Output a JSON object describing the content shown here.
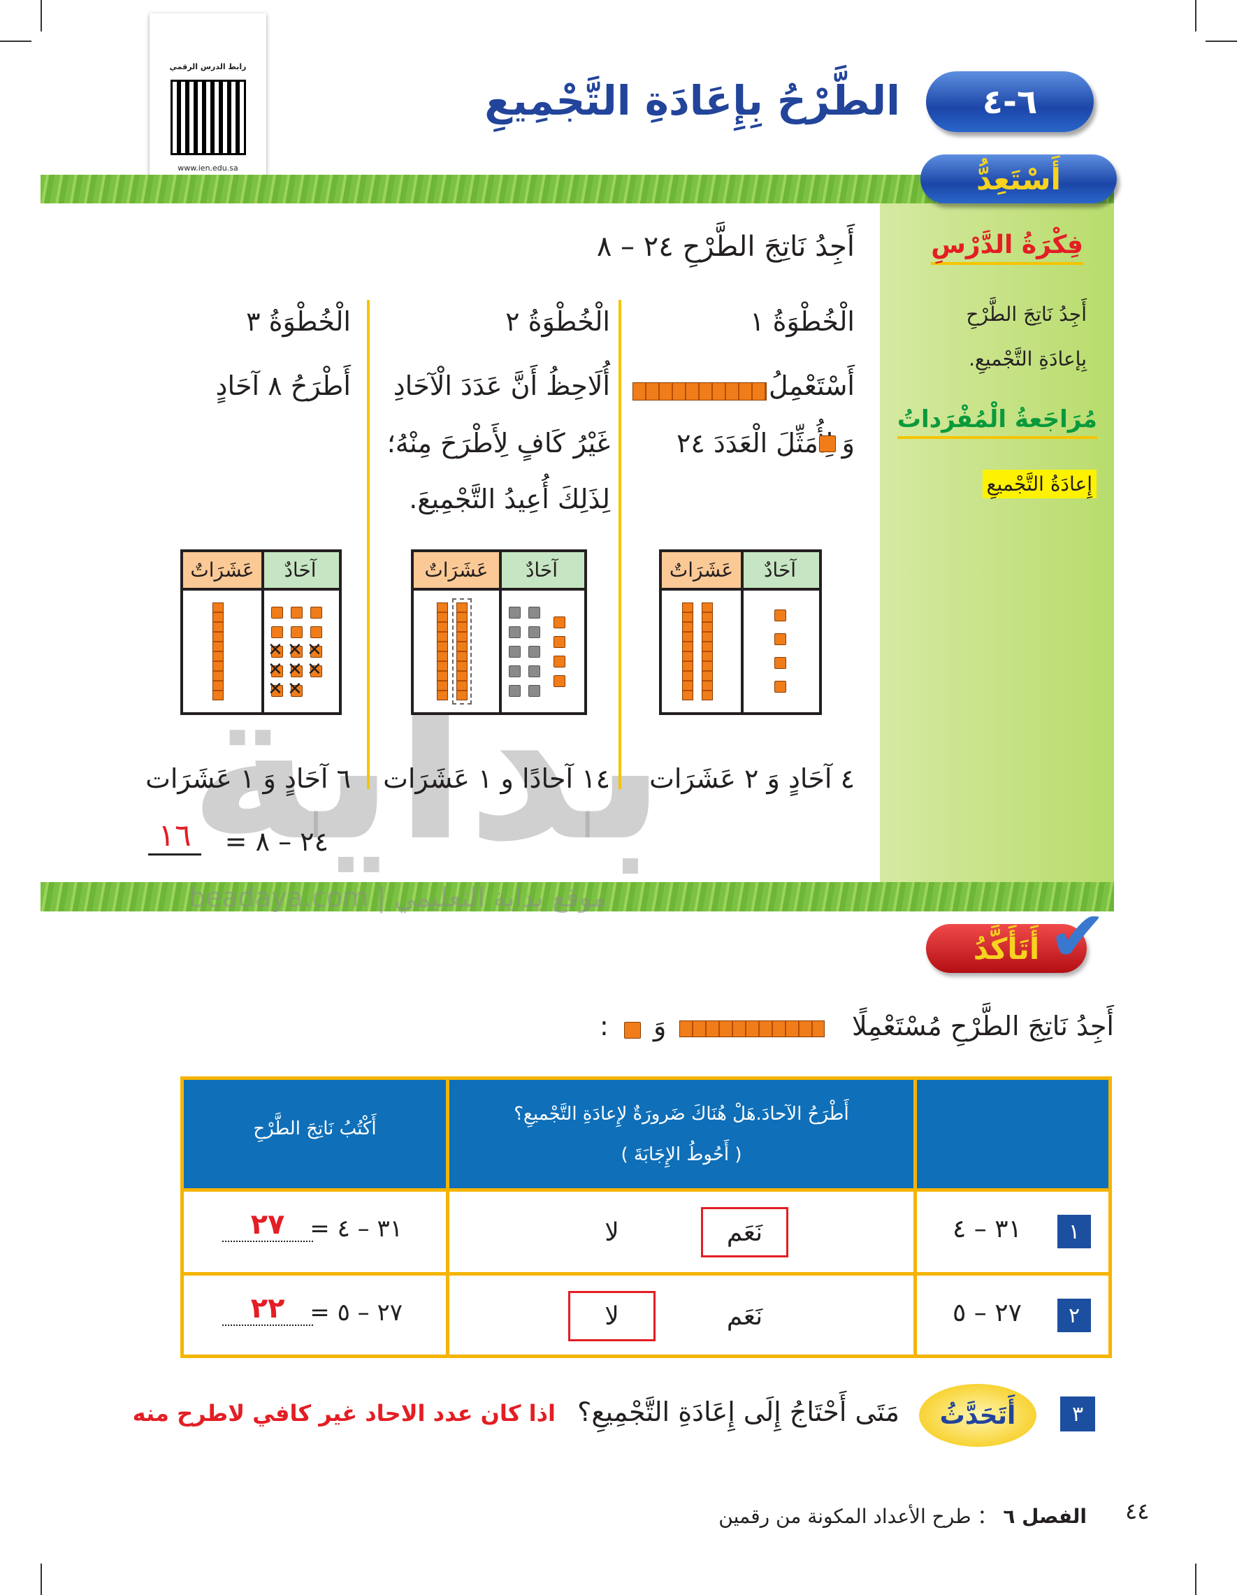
{
  "qr": {
    "caption": "رابط الدرس الرقمي",
    "url": "www.ien.edu.sa"
  },
  "lesson": {
    "number": "٦-٤",
    "title": "الطَّرْحُ بِإِعَادَةِ التَّجْمِيعِ"
  },
  "ready": {
    "label": "أَسْتَعِدُّ"
  },
  "sidebar": {
    "idea_title": "فِكْرَةُ الدَّرْسِ",
    "idea_lines": [
      "أَجِدُ نَاتِجَ الطَّرْحِ",
      "بِإعادَةِ التَّجْميعِ."
    ],
    "vocab_title": "مُرَاجَعةُ الْمُفْرَداتُ",
    "vocab_term": "إِعادَةُ التَّجْميعِ"
  },
  "main": {
    "question": "أَجِدُ نَاتِجَ الطَّرْحِ ٢٤ – ٨",
    "steps": [
      {
        "title": "الْخُطْوَةُ ١",
        "lines": [
          "أَسْتَعْمِلُ",
          "وَ  لِأُمَثِّلَ الْعَدَدَ ٢٤"
        ],
        "result": "٤ آحَادٍ وَ ٢ عَشَرَات",
        "tens": 2,
        "ones": 4
      },
      {
        "title": "الْخُطْوَةُ ٢",
        "lines": [
          "أُلَاحِظُ أَنَّ عَدَدَ الْآحَادِ",
          "غَيْرُ كَافٍ لِأَطْرَحَ مِنْهُ؛",
          "لِذَلِكَ أُعِيدُ التَّجْمِيعَ."
        ],
        "result": "١٤ آحادًا و ١ عَشَرَات",
        "tens": 2,
        "ones_regrouped": 10,
        "ones": 4
      },
      {
        "title": "الْخُطْوَةُ ٣",
        "lines": [
          "أَطْرَحُ ٨ آحَادٍ"
        ],
        "result": "٦ آحَادٍ وَ ١ عَشَرَات",
        "tens": 1,
        "ones": 14,
        "crossed": 8
      }
    ],
    "table_headers": {
      "tens": "عَشَرَاتٌ",
      "ones": "آحَادٌ"
    },
    "equation": "٢٤ – ٨ =",
    "answer": "١٦"
  },
  "watermark": {
    "logo": "بداية",
    "text": "beadaya.com | موقع بداية التعليمي"
  },
  "check": {
    "label": "أَتَأَكَّدُ",
    "instruction": "أَجِدُ نَاتِجَ الطَّرْحِ مُسْتَعْمِلًا",
    "instruction_and": "وَ",
    "instruction_end": ":"
  },
  "exercise_table": {
    "headers": {
      "mid_line1": "أَطْرَحُ الآحادَ.هَلْ هُنَاكَ ضَرورَةٌ لإِعادَةِ التَّجْميعِ؟",
      "mid_line2": "( أَحُوطُ الإِجَابَةَ )",
      "left": "أَكْتُبُ نَاتِجَ الطَّرْحِ"
    },
    "rows": [
      {
        "num": "١",
        "problem": "٣١ – ٤",
        "yes": "نَعَم",
        "no": "لا",
        "circled": "yes",
        "equation": "٣١ – ٤ =",
        "answer": "٢٧"
      },
      {
        "num": "٢",
        "problem": "٢٧ – ٥",
        "yes": "نَعَم",
        "no": "لا",
        "circled": "no",
        "equation": "٢٧ – ٥ =",
        "answer": "٢٢"
      }
    ]
  },
  "talk": {
    "num": "٣",
    "label": "أَتَحَدَّثُ",
    "question": "مَتَى أَحْتَاجُ إِلَى إِعَادَةِ التَّجْمِيعِ؟",
    "answer": "اذا كان عدد الاحاد غير كافي لاطرح منه"
  },
  "footer": {
    "page": "٤٤",
    "chapter": "الفصل ٦",
    "sep": "：",
    "chapter_title": "طرح الأعداد المكونة من رقمين"
  },
  "colors": {
    "blue": "#1c46a8",
    "green": "#7cc242",
    "orange": "#f07d1a",
    "red": "#e31e24",
    "yellow": "#f5c400"
  }
}
